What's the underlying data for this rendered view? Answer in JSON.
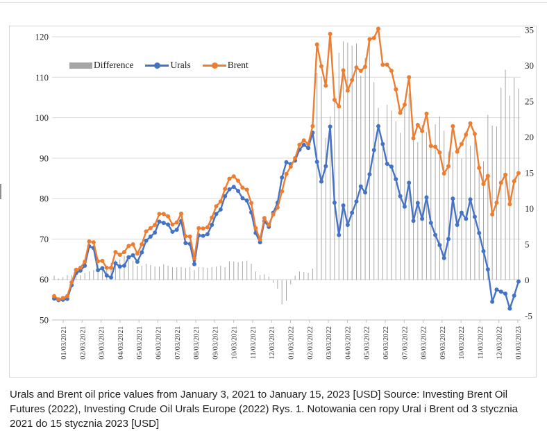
{
  "caption": {
    "lines": [
      "Urals and Brent oil price values from January 3, 2021 to January 15, 2023 [USD] Source: Investing Brent Oil",
      "Futures (2022), Investing Crude Oil Urals Europe (2022) Rys. 1. Notowania cen ropy Ural i Brent od 3 stycznia",
      "2021 do 15 stycznia 2023 [USD]"
    ]
  },
  "chart_data": {
    "type": "line+bar combo, dual axis",
    "title": "",
    "legend": [
      {
        "label": "Difference",
        "type": "bar",
        "color": "#a6a6a6",
        "axis": "right"
      },
      {
        "label": "Urals",
        "type": "line",
        "color": "#4472c4",
        "axis": "left"
      },
      {
        "label": "Brent",
        "type": "line",
        "color": "#ed7d31",
        "axis": "left"
      }
    ],
    "left_axis": {
      "range": [
        50,
        120
      ],
      "ticks": [
        120,
        110,
        100,
        90,
        80,
        70,
        60,
        50
      ]
    },
    "right_axis": {
      "range": [
        -5,
        35
      ],
      "ticks": [
        35,
        30,
        25,
        20,
        15,
        10,
        5,
        0,
        -5
      ]
    },
    "x_tick_labels": [
      "01/03/2021",
      "02/03/2021",
      "03/03/2021",
      "04/03/2021",
      "05/03/2021",
      "06/03/2021",
      "07/03/2021",
      "08/03/2021",
      "09/03/2021",
      "10/03/2021",
      "11/03/2021",
      "12/03/2021",
      "01/03/2022",
      "02/03/2022",
      "03/03/2022",
      "04/03/2022",
      "05/03/2022",
      "06/03/2022",
      "07/03/2022",
      "08/03/2022",
      "09/03/2022",
      "10/03/2022",
      "11/03/2022",
      "12/03/2022",
      "01/03/2023"
    ],
    "x": [
      "01/03/2021",
      "01/10/2021",
      "01/17/2021",
      "01/24/2021",
      "01/31/2021",
      "02/07/2021",
      "02/14/2021",
      "02/21/2021",
      "02/28/2021",
      "03/07/2021",
      "03/14/2021",
      "03/21/2021",
      "03/28/2021",
      "04/04/2021",
      "04/11/2021",
      "04/18/2021",
      "04/25/2021",
      "05/02/2021",
      "05/09/2021",
      "05/16/2021",
      "05/23/2021",
      "05/30/2021",
      "06/06/2021",
      "06/13/2021",
      "06/20/2021",
      "06/27/2021",
      "07/04/2021",
      "07/11/2021",
      "07/18/2021",
      "07/25/2021",
      "08/01/2021",
      "08/08/2021",
      "08/15/2021",
      "08/22/2021",
      "08/29/2021",
      "09/05/2021",
      "09/12/2021",
      "09/19/2021",
      "09/26/2021",
      "10/03/2021",
      "10/10/2021",
      "10/17/2021",
      "10/24/2021",
      "10/31/2021",
      "11/07/2021",
      "11/14/2021",
      "11/21/2021",
      "11/28/2021",
      "12/05/2021",
      "12/12/2021",
      "12/19/2021",
      "12/26/2021",
      "01/02/2022",
      "01/09/2022",
      "01/16/2022",
      "01/23/2022",
      "01/30/2022",
      "02/06/2022",
      "02/13/2022",
      "02/20/2022",
      "02/27/2022",
      "03/06/2022",
      "03/13/2022",
      "03/20/2022",
      "03/27/2022",
      "04/03/2022",
      "04/10/2022",
      "04/17/2022",
      "04/24/2022",
      "05/01/2022",
      "05/08/2022",
      "05/15/2022",
      "05/22/2022",
      "05/29/2022",
      "06/05/2022",
      "06/12/2022",
      "06/19/2022",
      "06/26/2022",
      "07/03/2022",
      "07/10/2022",
      "07/17/2022",
      "07/24/2022",
      "07/31/2022",
      "08/07/2022",
      "08/14/2022",
      "08/21/2022",
      "08/28/2022",
      "09/04/2022",
      "09/11/2022",
      "09/18/2022",
      "09/25/2022",
      "10/02/2022",
      "10/09/2022",
      "10/16/2022",
      "10/23/2022",
      "10/30/2022",
      "11/06/2022",
      "11/13/2022",
      "11/20/2022",
      "11/27/2022",
      "12/04/2022",
      "12/11/2022",
      "12/18/2022",
      "12/25/2022",
      "01/01/2023",
      "01/08/2023",
      "01/15/2023"
    ],
    "series": [
      {
        "name": "Brent",
        "axis": "left",
        "color": "#ed7d31",
        "values": [
          55.9,
          55.1,
          55.4,
          55.9,
          59.3,
          62.4,
          62.9,
          64.4,
          69.4,
          69.2,
          64.5,
          64.6,
          62.9,
          62.9,
          66.8,
          66.1,
          66.8,
          68.3,
          68.7,
          66.4,
          68.7,
          71.9,
          72.7,
          73.5,
          76.2,
          76.2,
          75.6,
          73.6,
          74.1,
          76.3,
          70.7,
          70.6,
          65.2,
          72.7,
          72.6,
          72.9,
          75.3,
          78.1,
          79.3,
          82.4,
          84.9,
          85.5,
          84.4,
          82.7,
          82.2,
          78.9,
          72.7,
          69.9,
          75.2,
          73.5,
          76.1,
          77.8,
          81.8,
          86.1,
          87.9,
          90.0,
          93.3,
          94.4,
          93.5,
          97.9,
          118.1,
          112.7,
          107.9,
          120.7,
          104.4,
          102.8,
          111.7,
          106.7,
          109.3,
          112.4,
          111.6,
          112.6,
          119.4,
          119.7,
          122.0,
          113.1,
          113.1,
          111.6,
          107.0,
          101.2,
          103.2,
          110.0,
          94.9,
          98.2,
          96.7,
          101.0,
          93.0,
          92.8,
          91.4,
          86.2,
          88.0,
          97.9,
          91.6,
          93.5,
          95.8,
          98.6,
          96.0,
          87.6,
          83.6,
          85.6,
          76.1,
          79.0,
          83.9,
          85.9,
          78.6,
          84.3,
          86.3
        ]
      },
      {
        "name": "Urals",
        "axis": "left",
        "color": "#4472c4",
        "values": [
          55.3,
          54.9,
          55.0,
          55.2,
          58.6,
          61.6,
          62.2,
          63.4,
          68.2,
          67.8,
          62.3,
          62.8,
          61.0,
          60.5,
          64.0,
          63.2,
          63.4,
          65.5,
          66.0,
          64.4,
          66.7,
          69.6,
          70.6,
          71.6,
          74.3,
          74.0,
          73.6,
          71.8,
          72.3,
          74.5,
          69.0,
          68.8,
          63.8,
          70.9,
          70.8,
          71.2,
          73.5,
          76.2,
          77.3,
          80.6,
          82.3,
          82.9,
          81.9,
          80.1,
          79.5,
          76.6,
          71.5,
          69.2,
          74.4,
          73.0,
          76.5,
          79.0,
          85.2,
          89.0,
          88.5,
          89.4,
          92.1,
          93.3,
          92.5,
          96.3,
          89.1,
          84.2,
          88.0,
          97.8,
          79.0,
          71.0,
          78.3,
          73.5,
          76.5,
          79.3,
          83.0,
          81.5,
          86.0,
          92.0,
          97.9,
          93.5,
          88.6,
          87.9,
          84.8,
          80.6,
          78.0,
          83.9,
          74.5,
          78.9,
          75.0,
          80.3,
          74.0,
          71.0,
          68.5,
          65.3,
          70.0,
          80.0,
          73.5,
          76.5,
          75.0,
          79.8,
          75.5,
          71.5,
          67.0,
          62.5,
          54.5,
          57.5,
          57.0,
          56.5,
          52.8,
          56.0,
          59.5
        ]
      },
      {
        "name": "Difference",
        "axis": "right",
        "color": "#a6a6a6",
        "derived": "Brent minus Urals, plotted as thin bars on the right axis"
      }
    ]
  }
}
